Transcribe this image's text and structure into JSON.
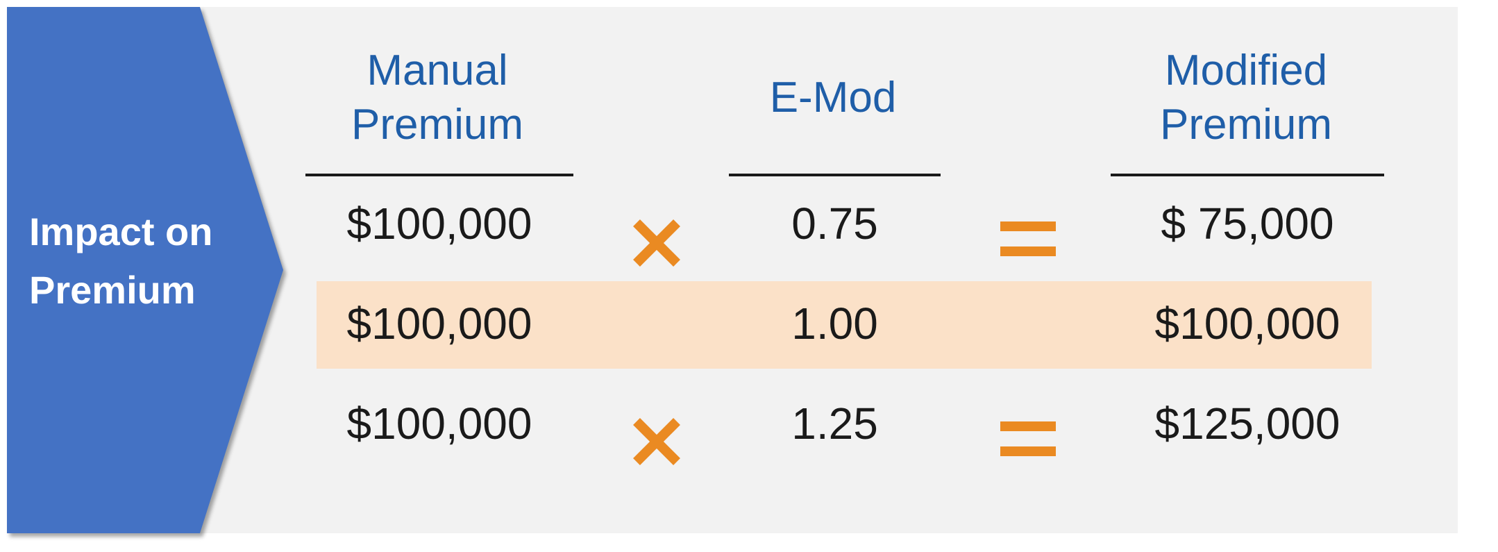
{
  "side_label": {
    "line1": "Impact on",
    "line2": "Premium",
    "color": "#4472c4"
  },
  "columns": [
    {
      "line1": "Manual",
      "line2": "Premium"
    },
    {
      "line1": "",
      "line2": "E-Mod"
    },
    {
      "line1": "Modified",
      "line2": "Premium"
    }
  ],
  "rows": [
    {
      "manual": "$100,000",
      "emod": "0.75",
      "modified": "$ 75,000",
      "show_operators": true,
      "highlighted": false
    },
    {
      "manual": "$100,000",
      "emod": "1.00",
      "modified": "$100,000",
      "show_operators": false,
      "highlighted": true
    },
    {
      "manual": "$100,000",
      "emod": "1.25",
      "modified": "$125,000",
      "show_operators": true,
      "highlighted": false
    }
  ],
  "operators": {
    "multiply_icon": "multiply-icon",
    "equals_icon": "equals-icon",
    "color": "#ea8a22"
  },
  "colors": {
    "header_text": "#1f5ea8",
    "highlight_band": "#fbe1c8",
    "panel_background": "#f2f2f2"
  }
}
